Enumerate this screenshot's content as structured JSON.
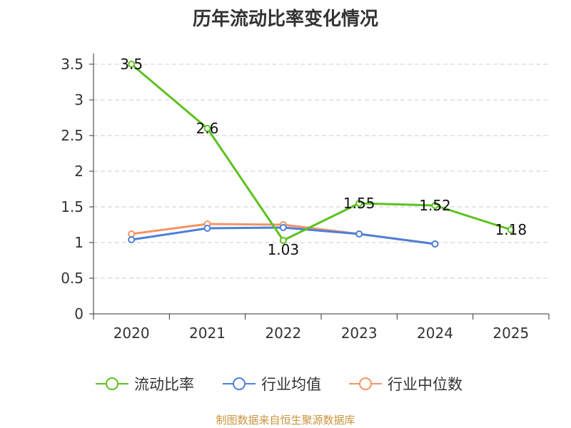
{
  "chart_data": {
    "type": "line",
    "title": "历年流动比率变化情况",
    "categories": [
      "2020",
      "2021",
      "2022",
      "2023",
      "2024",
      "2025"
    ],
    "yticks": [
      "0",
      "0.5",
      "1",
      "1.5",
      "2",
      "2.5",
      "3",
      "3.5"
    ],
    "ylim": [
      0,
      3.5
    ],
    "grid": true,
    "legend_position": "bottom",
    "series": [
      {
        "name": "流动比率",
        "color": "#5cc21f",
        "values": [
          3.5,
          2.6,
          1.03,
          1.55,
          1.52,
          1.18
        ],
        "labels": [
          "3.5",
          "2.6",
          "1.03",
          "1.55",
          "1.52",
          "1.18"
        ]
      },
      {
        "name": "行业均值",
        "color": "#4c7fdb",
        "values": [
          1.04,
          1.2,
          1.21,
          1.12,
          0.98,
          null
        ]
      },
      {
        "name": "行业中位数",
        "color": "#f39465",
        "values": [
          1.12,
          1.26,
          1.25,
          1.12,
          0.98,
          null
        ]
      }
    ]
  },
  "source": "制图数据来自恒生聚源数据库"
}
